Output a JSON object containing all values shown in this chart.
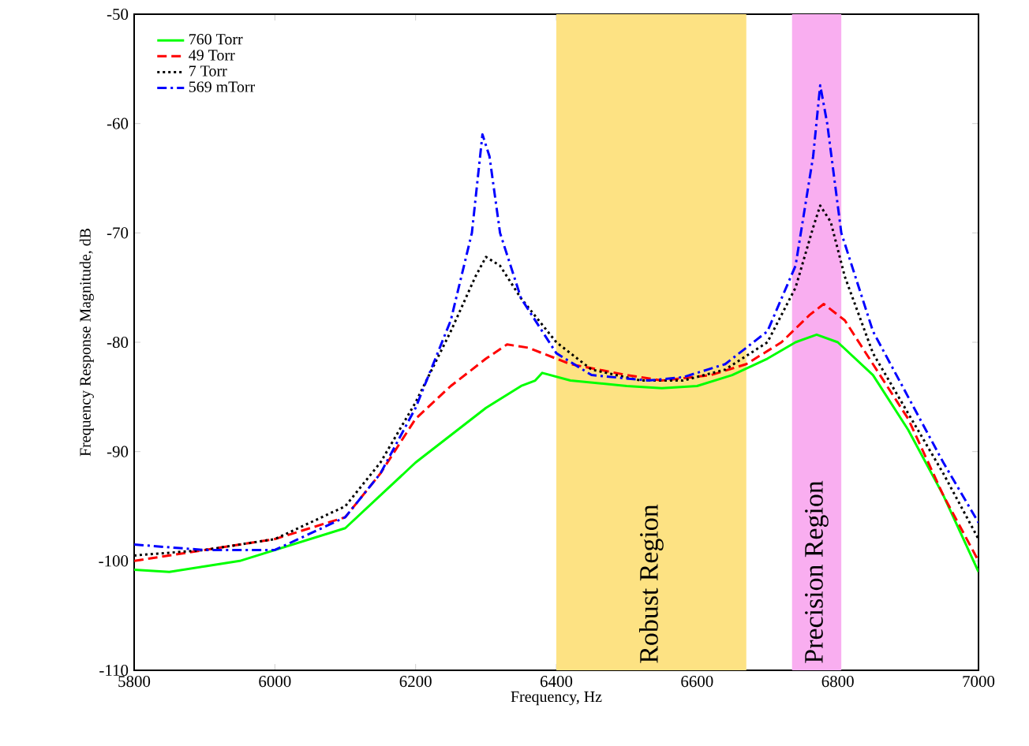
{
  "chart_data": {
    "type": "line",
    "xlabel": "Frequency, Hz",
    "ylabel": "Frequency Response Magnitude, dB",
    "xlim": [
      5800,
      7000
    ],
    "ylim": [
      -110,
      -50
    ],
    "xticks": [
      5800,
      6000,
      6200,
      6400,
      6600,
      6800,
      7000
    ],
    "yticks": [
      -110,
      -100,
      -90,
      -80,
      -70,
      -60,
      -50
    ],
    "legend": "top left",
    "grid": false,
    "marker": "none",
    "bands": [
      {
        "axis": "x",
        "from": 6400,
        "to": 6670,
        "label": "Robust Region",
        "color": "#fde283"
      },
      {
        "axis": "x",
        "from": 6735,
        "to": 6805,
        "label": "Precision Region",
        "color": "#f9aef0"
      }
    ],
    "series": [
      {
        "name": "760 Torr",
        "color": "#00ff00",
        "line_style": "solid",
        "x": [
          5800,
          5850,
          5900,
          5950,
          6000,
          6100,
          6150,
          6200,
          6250,
          6300,
          6350,
          6370,
          6380,
          6420,
          6500,
          6550,
          6600,
          6650,
          6700,
          6740,
          6770,
          6800,
          6850,
          6900,
          6950,
          7000
        ],
        "values": [
          -100.8,
          -101,
          -100.5,
          -100,
          -99,
          -97,
          -94,
          -91,
          -88.5,
          -86,
          -84,
          -83.5,
          -82.8,
          -83.5,
          -84,
          -84.2,
          -84,
          -83,
          -81.5,
          -80,
          -79.3,
          -80,
          -83,
          -88,
          -94,
          -101
        ]
      },
      {
        "name": "49 Torr",
        "color": "#ff0000",
        "line_style": "dashed",
        "x": [
          5800,
          5900,
          6000,
          6100,
          6150,
          6200,
          6250,
          6300,
          6330,
          6360,
          6420,
          6500,
          6550,
          6620,
          6670,
          6720,
          6760,
          6780,
          6810,
          6850,
          6900,
          6950,
          7000
        ],
        "values": [
          -100,
          -99,
          -98,
          -96,
          -92,
          -87,
          -84,
          -81.5,
          -80.2,
          -80.5,
          -82,
          -83,
          -83.5,
          -83,
          -82,
          -80,
          -77.5,
          -76.5,
          -78,
          -82,
          -87,
          -94,
          -100
        ]
      },
      {
        "name": "7 Torr",
        "color": "#000000",
        "line_style": "dotted",
        "x": [
          5800,
          5900,
          6000,
          6100,
          6150,
          6200,
          6250,
          6285,
          6300,
          6320,
          6350,
          6400,
          6450,
          6520,
          6580,
          6640,
          6700,
          6740,
          6765,
          6775,
          6790,
          6810,
          6850,
          6900,
          6950,
          7000
        ],
        "values": [
          -99.5,
          -99,
          -98,
          -95,
          -91,
          -85.5,
          -79,
          -74,
          -72.2,
          -73,
          -76,
          -80,
          -82.5,
          -83.5,
          -83.5,
          -82.5,
          -80,
          -75,
          -69.5,
          -67.5,
          -69,
          -74,
          -81,
          -86.5,
          -92,
          -98
        ]
      },
      {
        "name": "569 mTorr",
        "color": "#0000ff",
        "line_style": "dashdot",
        "x": [
          5800,
          5900,
          6000,
          6100,
          6150,
          6200,
          6250,
          6280,
          6295,
          6305,
          6320,
          6350,
          6400,
          6450,
          6530,
          6580,
          6640,
          6700,
          6740,
          6765,
          6775,
          6785,
          6805,
          6850,
          6900,
          6950,
          7000
        ],
        "values": [
          -98.5,
          -99,
          -99,
          -96,
          -92,
          -86,
          -78,
          -70,
          -61,
          -63,
          -70,
          -76,
          -81,
          -83,
          -83.5,
          -83.2,
          -82,
          -79,
          -73,
          -63,
          -56.5,
          -60,
          -70,
          -79,
          -85,
          -91,
          -96.5
        ]
      }
    ]
  }
}
